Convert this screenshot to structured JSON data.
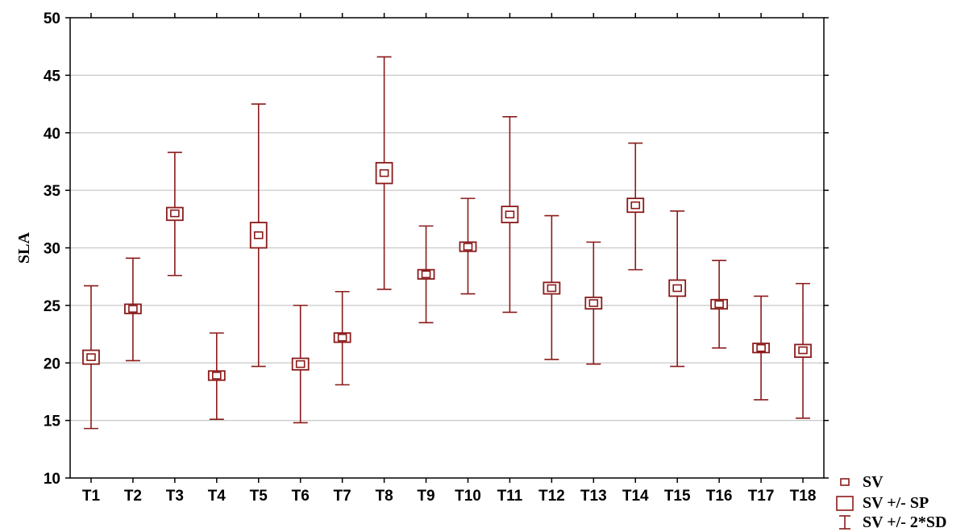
{
  "chart_data": {
    "type": "box",
    "categories": [
      "T1",
      "T2",
      "T3",
      "T4",
      "T5",
      "T6",
      "T7",
      "T8",
      "T9",
      "T10",
      "T11",
      "T12",
      "T13",
      "T14",
      "T15",
      "T16",
      "T17",
      "T18"
    ],
    "series": [
      {
        "mean": [
          20.5,
          24.7,
          33.0,
          18.9,
          31.1,
          19.9,
          22.2,
          36.5,
          27.7,
          30.1,
          32.9,
          26.5,
          25.2,
          33.7,
          26.5,
          25.1,
          21.3,
          21.1
        ],
        "se_low": [
          19.9,
          24.3,
          32.4,
          18.5,
          30.0,
          19.4,
          21.8,
          35.6,
          27.3,
          29.7,
          32.2,
          26.0,
          24.7,
          33.1,
          25.8,
          24.7,
          20.9,
          20.5
        ],
        "se_high": [
          21.1,
          25.1,
          33.5,
          19.3,
          32.2,
          20.4,
          22.6,
          37.4,
          28.1,
          30.5,
          33.6,
          27.0,
          25.7,
          34.3,
          27.2,
          25.5,
          21.7,
          21.6
        ],
        "sd2_low": [
          14.3,
          20.2,
          27.6,
          15.1,
          19.7,
          14.8,
          18.1,
          26.4,
          23.5,
          26.0,
          24.4,
          20.3,
          19.9,
          28.1,
          19.7,
          21.3,
          16.8,
          15.2
        ],
        "sd2_high": [
          26.7,
          29.1,
          38.3,
          22.6,
          42.5,
          25.0,
          26.2,
          46.6,
          31.9,
          34.3,
          41.4,
          32.8,
          30.5,
          39.1,
          33.2,
          28.9,
          25.8,
          26.9
        ]
      }
    ],
    "ylabel": "SLA",
    "ylim": [
      10,
      50
    ],
    "yticks": [
      10,
      15,
      20,
      25,
      30,
      35,
      40,
      45,
      50
    ],
    "grid": true,
    "legend": {
      "position": "bottom-right",
      "items": [
        "SV",
        "SV +/- SP",
        "SV +/- 2*SD"
      ]
    },
    "color": "#8b1a1a"
  }
}
